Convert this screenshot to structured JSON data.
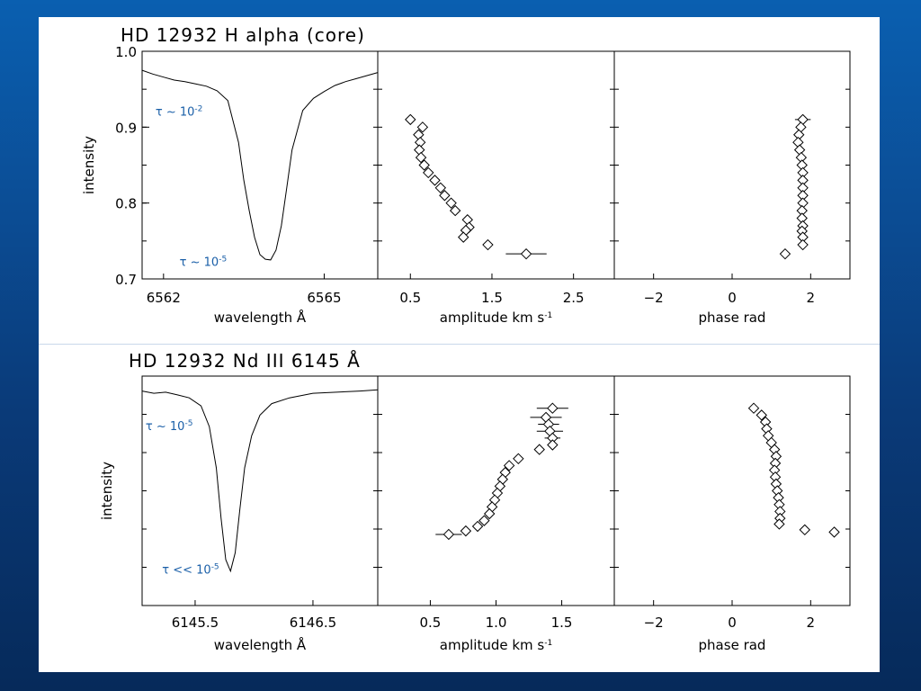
{
  "colors": {
    "annotation": "#1a5fa8",
    "ink": "#000000",
    "background_top": "#0a5fb0",
    "background_bottom": "#062a5a",
    "panel": "#ffffff"
  },
  "chart_data": [
    {
      "type": "line",
      "title": "HD 12932 H alpha (core)",
      "xlabel": "wavelength Å",
      "ylabel": "intensity",
      "xlim": [
        6561.6,
        6566.0
      ],
      "ylim": [
        0.7,
        1.0
      ],
      "xticks": [
        6562,
        6565
      ],
      "yticks": [
        "1.0",
        "0.9",
        "0.8",
        "0.7"
      ],
      "ytick_values": [
        1.0,
        0.9,
        0.8,
        0.7
      ],
      "annotations": [
        {
          "base": "τ ~ 10",
          "exp": "-2",
          "x": 6561.85,
          "y": 0.915
        },
        {
          "base": "τ ~ 10",
          "exp": "-5",
          "x": 6562.3,
          "y": 0.717
        }
      ],
      "series": [
        {
          "x": [
            6561.6,
            6561.8,
            6562.0,
            6562.2,
            6562.4,
            6562.6,
            6562.8,
            6563.0,
            6563.2,
            6563.4,
            6563.5,
            6563.6,
            6563.7,
            6563.8,
            6563.9,
            6564.0,
            6564.1,
            6564.2,
            6564.3,
            6564.4,
            6564.6,
            6564.8,
            6565.0,
            6565.2,
            6565.4,
            6565.6,
            6565.8,
            6566.0
          ],
          "y": [
            0.975,
            0.97,
            0.966,
            0.962,
            0.96,
            0.957,
            0.954,
            0.948,
            0.935,
            0.88,
            0.83,
            0.79,
            0.755,
            0.732,
            0.726,
            0.725,
            0.738,
            0.77,
            0.82,
            0.87,
            0.922,
            0.938,
            0.947,
            0.955,
            0.96,
            0.964,
            0.968,
            0.972
          ]
        }
      ]
    },
    {
      "type": "scatter",
      "xlabel": "amplitude km s",
      "xlabel_exp": "-1",
      "xlim": [
        0.1,
        3.0
      ],
      "ylim": [
        0.7,
        1.0
      ],
      "xticks": [
        0.5,
        1.5,
        2.5
      ],
      "xtick_labels": [
        "0.5",
        "1.5",
        "2.5"
      ],
      "series": [
        {
          "points": [
            {
              "x": 0.5,
              "y": 0.91,
              "err": 0.05
            },
            {
              "x": 0.65,
              "y": 0.9,
              "err": 0.05
            },
            {
              "x": 0.6,
              "y": 0.89,
              "err": 0.05
            },
            {
              "x": 0.62,
              "y": 0.88,
              "err": 0.05
            },
            {
              "x": 0.61,
              "y": 0.87,
              "err": 0.05
            },
            {
              "x": 0.63,
              "y": 0.86,
              "err": 0.05
            },
            {
              "x": 0.67,
              "y": 0.85,
              "err": 0.05
            },
            {
              "x": 0.72,
              "y": 0.84,
              "err": 0.05
            },
            {
              "x": 0.8,
              "y": 0.83,
              "err": 0.05
            },
            {
              "x": 0.87,
              "y": 0.82,
              "err": 0.05
            },
            {
              "x": 0.92,
              "y": 0.81,
              "err": 0.05
            },
            {
              "x": 1.0,
              "y": 0.8,
              "err": 0.05
            },
            {
              "x": 1.05,
              "y": 0.79,
              "err": 0.05
            },
            {
              "x": 1.2,
              "y": 0.778,
              "err": 0.05
            },
            {
              "x": 1.22,
              "y": 0.768,
              "err": 0.05
            },
            {
              "x": 1.18,
              "y": 0.764,
              "err": 0.05
            },
            {
              "x": 1.15,
              "y": 0.755,
              "err": 0.05
            },
            {
              "x": 1.45,
              "y": 0.745,
              "err": 0.06
            },
            {
              "x": 1.92,
              "y": 0.733,
              "err": 0.25
            }
          ]
        }
      ]
    },
    {
      "type": "scatter",
      "xlabel": "phase rad",
      "xlim": [
        -3.0,
        3.0
      ],
      "ylim": [
        0.7,
        1.0
      ],
      "xticks": [
        -2,
        0,
        2
      ],
      "xtick_labels": [
        "−2",
        "0",
        "2"
      ],
      "series": [
        {
          "points": [
            {
              "x": 1.8,
              "y": 0.91,
              "err": 0.2
            },
            {
              "x": 1.75,
              "y": 0.9
            },
            {
              "x": 1.7,
              "y": 0.89
            },
            {
              "x": 1.68,
              "y": 0.88
            },
            {
              "x": 1.72,
              "y": 0.87
            },
            {
              "x": 1.76,
              "y": 0.86
            },
            {
              "x": 1.78,
              "y": 0.85
            },
            {
              "x": 1.8,
              "y": 0.84
            },
            {
              "x": 1.8,
              "y": 0.83
            },
            {
              "x": 1.8,
              "y": 0.82
            },
            {
              "x": 1.8,
              "y": 0.81
            },
            {
              "x": 1.8,
              "y": 0.8
            },
            {
              "x": 1.78,
              "y": 0.79
            },
            {
              "x": 1.78,
              "y": 0.78
            },
            {
              "x": 1.8,
              "y": 0.77
            },
            {
              "x": 1.78,
              "y": 0.763
            },
            {
              "x": 1.8,
              "y": 0.755
            },
            {
              "x": 1.8,
              "y": 0.745
            },
            {
              "x": 1.35,
              "y": 0.733
            }
          ]
        }
      ]
    },
    {
      "type": "line",
      "title": "HD 12932 Nd III 6145 Å",
      "xlabel": "wavelength Å",
      "ylabel": "intensity",
      "xlim": [
        6145.05,
        6147.05
      ],
      "ylim": [
        0.0,
        1.0
      ],
      "xticks": [
        6145.5,
        6146.5
      ],
      "xtick_labels": [
        "6145.5",
        "6146.5"
      ],
      "annotations": [
        {
          "base": "τ ~ 10",
          "exp": "-5",
          "x": 6145.08,
          "y": 0.765
        },
        {
          "base": "τ << 10",
          "exp": "-5",
          "x": 6145.22,
          "y": 0.14
        }
      ],
      "series": [
        {
          "x": [
            6145.05,
            6145.15,
            6145.25,
            6145.35,
            6145.45,
            6145.55,
            6145.62,
            6145.68,
            6145.72,
            6145.76,
            6145.8,
            6145.84,
            6145.88,
            6145.92,
            6145.98,
            6146.05,
            6146.15,
            6146.3,
            6146.5,
            6146.7,
            6146.9,
            6147.05
          ],
          "y": [
            0.935,
            0.925,
            0.93,
            0.918,
            0.905,
            0.87,
            0.78,
            0.6,
            0.38,
            0.2,
            0.15,
            0.23,
            0.42,
            0.6,
            0.74,
            0.83,
            0.88,
            0.905,
            0.925,
            0.93,
            0.935,
            0.94
          ]
        }
      ]
    },
    {
      "type": "scatter",
      "xlabel": "amplitude km s",
      "xlabel_exp": "-1",
      "xlim": [
        0.1,
        1.9
      ],
      "ylim": [
        0.0,
        1.0
      ],
      "xticks": [
        0.5,
        1.0,
        1.5
      ],
      "xtick_labels": [
        "0.5",
        "1.0",
        "1.5"
      ],
      "series": [
        {
          "points": [
            {
              "x": 1.43,
              "y": 0.86,
              "err": 0.12
            },
            {
              "x": 1.38,
              "y": 0.82,
              "err": 0.12
            },
            {
              "x": 1.4,
              "y": 0.79,
              "err": 0.08
            },
            {
              "x": 1.41,
              "y": 0.76,
              "err": 0.1
            },
            {
              "x": 1.43,
              "y": 0.73,
              "err": 0.06
            },
            {
              "x": 1.43,
              "y": 0.7
            },
            {
              "x": 1.33,
              "y": 0.68
            },
            {
              "x": 1.17,
              "y": 0.64
            },
            {
              "x": 1.1,
              "y": 0.61
            },
            {
              "x": 1.07,
              "y": 0.58
            },
            {
              "x": 1.05,
              "y": 0.55
            },
            {
              "x": 1.03,
              "y": 0.52
            },
            {
              "x": 1.01,
              "y": 0.49
            },
            {
              "x": 0.99,
              "y": 0.46
            },
            {
              "x": 0.97,
              "y": 0.43
            },
            {
              "x": 0.95,
              "y": 0.4
            },
            {
              "x": 0.91,
              "y": 0.37
            },
            {
              "x": 0.86,
              "y": 0.345
            },
            {
              "x": 0.77,
              "y": 0.325
            },
            {
              "x": 0.64,
              "y": 0.31,
              "err": 0.1
            }
          ]
        }
      ]
    },
    {
      "type": "scatter",
      "xlabel": "phase rad",
      "xlim": [
        -3.0,
        3.0
      ],
      "ylim": [
        0.0,
        1.0
      ],
      "xticks": [
        -2,
        0,
        2
      ],
      "xtick_labels": [
        "−2",
        "0",
        "2"
      ],
      "series": [
        {
          "points": [
            {
              "x": 0.55,
              "y": 0.86
            },
            {
              "x": 0.75,
              "y": 0.83
            },
            {
              "x": 0.85,
              "y": 0.8
            },
            {
              "x": 0.88,
              "y": 0.77
            },
            {
              "x": 0.92,
              "y": 0.74
            },
            {
              "x": 1.0,
              "y": 0.71
            },
            {
              "x": 1.08,
              "y": 0.68
            },
            {
              "x": 1.12,
              "y": 0.65
            },
            {
              "x": 1.1,
              "y": 0.62
            },
            {
              "x": 1.08,
              "y": 0.59
            },
            {
              "x": 1.1,
              "y": 0.56
            },
            {
              "x": 1.12,
              "y": 0.53
            },
            {
              "x": 1.15,
              "y": 0.5
            },
            {
              "x": 1.18,
              "y": 0.47
            },
            {
              "x": 1.2,
              "y": 0.44
            },
            {
              "x": 1.22,
              "y": 0.41
            },
            {
              "x": 1.22,
              "y": 0.38
            },
            {
              "x": 1.2,
              "y": 0.355
            },
            {
              "x": 1.85,
              "y": 0.33
            },
            {
              "x": 2.6,
              "y": 0.32
            }
          ]
        }
      ]
    }
  ]
}
